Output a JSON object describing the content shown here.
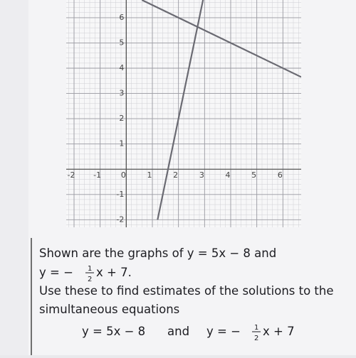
{
  "chart_data": {
    "type": "line",
    "series": [
      {
        "color": "#6a6a72",
        "x": [
          1.2,
          3.0
        ],
        "values": [
          -2,
          7
        ]
      },
      {
        "color": "#6a6a72",
        "x": [
          0.6,
          6.7
        ],
        "values": [
          6.7,
          3.65
        ]
      }
    ],
    "xlim": [
      -2.3,
      6.7
    ],
    "ylim": [
      -2.3,
      6.7
    ],
    "xticks": [
      -2,
      -1,
      0,
      1,
      2,
      3,
      4,
      5,
      6
    ],
    "yticks": [
      -2,
      -1,
      1,
      2,
      3,
      4,
      5,
      6
    ],
    "grid": true
  },
  "text": {
    "line1": "Shown are the graphs of y = 5x − 8 and",
    "line2": {
      "before": "y = −",
      "num": "1",
      "den": "2",
      "after": "x + 7."
    },
    "line3": "Use these to find estimates of the solutions to the",
    "line4": "simultaneous equations",
    "line5": {
      "first": "y = 5x − 8",
      "joiner": "and",
      "before": "y = −",
      "num": "1",
      "den": "2",
      "after": "x + 7"
    }
  }
}
